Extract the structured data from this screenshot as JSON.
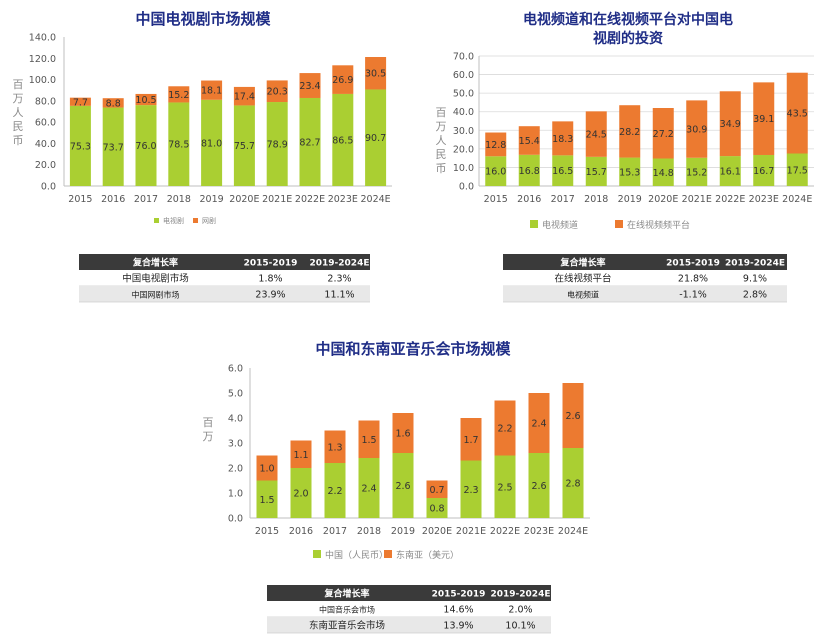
{
  "colors": {
    "green": "#aacf32",
    "orange": "#ec7a30",
    "title": "#1f2d86",
    "header": "#3a3a3a",
    "row_alt": "#e8e8e8"
  },
  "chart_data": [
    {
      "type": "bar",
      "stacked": true,
      "title": "中国电视剧市场规模",
      "ylabel": "百万人民币",
      "ylim": [
        0,
        140
      ],
      "yticks": [
        "0.0",
        "20.0",
        "40.0",
        "60.0",
        "80.0",
        "100.0",
        "120.0",
        "140.0"
      ],
      "categories": [
        "2015",
        "2016",
        "2017",
        "2018",
        "2019",
        "2020E",
        "2021E",
        "2022E",
        "2023E",
        "2024E"
      ],
      "series": [
        {
          "name": "电视剧",
          "values": [
            75.3,
            73.7,
            76.0,
            78.5,
            81.0,
            75.7,
            78.9,
            82.7,
            86.5,
            90.7
          ]
        },
        {
          "name": "网剧",
          "values": [
            7.7,
            8.8,
            10.5,
            15.2,
            18.1,
            17.4,
            20.3,
            23.4,
            26.9,
            30.5
          ]
        }
      ],
      "legend_position": "bottom",
      "grid": false
    },
    {
      "type": "bar",
      "stacked": true,
      "title": "电视频道和在线视频平台对中国电视剧的投资",
      "title_lines": [
        "电视频道和在线视频平台对中国电",
        "视剧的投资"
      ],
      "ylabel": "百万人民币",
      "ylim": [
        0,
        70
      ],
      "yticks": [
        "0.0",
        "10.0",
        "20.0",
        "30.0",
        "40.0",
        "50.0",
        "60.0",
        "70.0"
      ],
      "categories": [
        "2015",
        "2016",
        "2017",
        "2018",
        "2019",
        "2020E",
        "2021E",
        "2022E",
        "2023E",
        "2024E"
      ],
      "series": [
        {
          "name": "电视频道",
          "values": [
            16.0,
            16.8,
            16.5,
            15.7,
            15.3,
            14.8,
            15.2,
            16.1,
            16.7,
            17.5
          ]
        },
        {
          "name": "在线视频频平台",
          "values": [
            12.8,
            15.4,
            18.3,
            24.5,
            28.2,
            27.2,
            30.9,
            34.9,
            39.1,
            43.5
          ]
        }
      ],
      "legend_position": "bottom",
      "grid": true
    },
    {
      "type": "bar",
      "stacked": true,
      "title": "中国和东南亚音乐会市场规模",
      "ylabel": "百万",
      "ylim": [
        0,
        6
      ],
      "yticks": [
        "0.0",
        "1.0",
        "2.0",
        "3.0",
        "4.0",
        "5.0",
        "6.0"
      ],
      "categories": [
        "2015",
        "2016",
        "2017",
        "2018",
        "2019",
        "2020E",
        "2021E",
        "2022E",
        "2023E",
        "2024E"
      ],
      "series": [
        {
          "name": "中国（人民币）",
          "values": [
            1.5,
            2.0,
            2.2,
            2.4,
            2.6,
            0.8,
            2.3,
            2.5,
            2.6,
            2.8
          ]
        },
        {
          "name": "东南亚（美元）",
          "values": [
            1.0,
            1.1,
            1.3,
            1.5,
            1.6,
            0.7,
            1.7,
            2.2,
            2.4,
            2.6
          ]
        }
      ],
      "legend_position": "bottom",
      "grid": false
    }
  ],
  "tables": [
    {
      "header": [
        "复合增长率",
        "2015-2019",
        "2019-2024E"
      ],
      "rows": [
        [
          "中国电视剧市场",
          "1.8%",
          "2.3%"
        ],
        [
          "中国网剧市场",
          "23.9%",
          "11.1%"
        ]
      ]
    },
    {
      "header": [
        "复合增长率",
        "2015-2019",
        "2019-2024E"
      ],
      "rows": [
        [
          "在线视频平台",
          "21.8%",
          "9.1%"
        ],
        [
          "电视频道",
          "-1.1%",
          "2.8%"
        ]
      ]
    },
    {
      "header": [
        "复合增长率",
        "2015-2019",
        "2019-2024E"
      ],
      "rows": [
        [
          "中国音乐会市场",
          "14.6%",
          "2.0%"
        ],
        [
          "东南亚音乐会市场",
          "13.9%",
          "10.1%"
        ]
      ]
    }
  ]
}
